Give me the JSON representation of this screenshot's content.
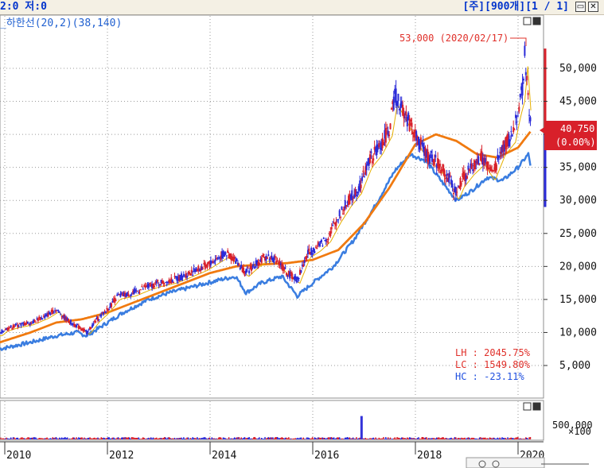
{
  "header": {
    "left_text": "2:0 저:0",
    "right_text": "[주][900개][1 / 1]"
  },
  "legend_text": "_하한선(20,2)(38,140)",
  "annotations": {
    "high_label": "53,000 (2020/02/17)",
    "price_label": "40,750",
    "change_label": "(0.00%)",
    "stats": [
      {
        "label": "LH : 2045.75%",
        "color": "#e0302a"
      },
      {
        "label": "LC : 1549.80%",
        "color": "#e0302a"
      },
      {
        "label": "HC :  -23.11%",
        "color": "#2050e0"
      }
    ],
    "volume_tick": "500,000",
    "volume_unit": "×100"
  },
  "colors": {
    "ma_orange": "#f07a10",
    "lower_band": "#3a7de0",
    "candle_red": "#d8202a",
    "candle_blue": "#2a2ad8",
    "grid": "#9a9a9a"
  },
  "chart_data": {
    "type": "line",
    "x_ticks": [
      "2010",
      "2012",
      "2014",
      "2016",
      "2018",
      "2020"
    ],
    "y_ticks": [
      {
        "v": 5000,
        "label": "5,000"
      },
      {
        "v": 10000,
        "label": "10,000"
      },
      {
        "v": 15000,
        "label": "15,000"
      },
      {
        "v": 20000,
        "label": "20,000"
      },
      {
        "v": 25000,
        "label": "25,000"
      },
      {
        "v": 30000,
        "label": "30,000"
      },
      {
        "v": 35000,
        "label": "35,000"
      },
      {
        "v": 40000,
        "label": "40,000"
      },
      {
        "v": 45000,
        "label": "45,000"
      },
      {
        "v": 50000,
        "label": "50,000"
      }
    ],
    "ylim": [
      0,
      57000
    ],
    "xlim": [
      2009.9,
      2020.3
    ],
    "grid": true,
    "series": [
      {
        "role": "price",
        "points": [
          [
            2009.9,
            9800
          ],
          [
            2010.0,
            10500
          ],
          [
            2010.2,
            11000
          ],
          [
            2010.5,
            11500
          ],
          [
            2010.8,
            12500
          ],
          [
            2011.0,
            13500
          ],
          [
            2011.2,
            12000
          ],
          [
            2011.4,
            11000
          ],
          [
            2011.6,
            10000
          ],
          [
            2011.8,
            12000
          ],
          [
            2012.0,
            13500
          ],
          [
            2012.2,
            15500
          ],
          [
            2012.5,
            16000
          ],
          [
            2012.8,
            17000
          ],
          [
            2013.0,
            17500
          ],
          [
            2013.3,
            18000
          ],
          [
            2013.6,
            19000
          ],
          [
            2013.9,
            20000
          ],
          [
            2014.1,
            21000
          ],
          [
            2014.3,
            22000
          ],
          [
            2014.5,
            21000
          ],
          [
            2014.7,
            19000
          ],
          [
            2014.9,
            20500
          ],
          [
            2015.1,
            21500
          ],
          [
            2015.3,
            21000
          ],
          [
            2015.5,
            19000
          ],
          [
            2015.7,
            18000
          ],
          [
            2015.9,
            22000
          ],
          [
            2016.1,
            23000
          ],
          [
            2016.3,
            24500
          ],
          [
            2016.5,
            27500
          ],
          [
            2016.7,
            30000
          ],
          [
            2016.9,
            32000
          ],
          [
            2017.1,
            36000
          ],
          [
            2017.3,
            38000
          ],
          [
            2017.5,
            41000
          ],
          [
            2017.6,
            46000
          ],
          [
            2017.8,
            43000
          ],
          [
            2018.0,
            40000
          ],
          [
            2018.2,
            37000
          ],
          [
            2018.4,
            36000
          ],
          [
            2018.6,
            34000
          ],
          [
            2018.8,
            31000
          ],
          [
            2018.9,
            33000
          ],
          [
            2019.1,
            35000
          ],
          [
            2019.3,
            36500
          ],
          [
            2019.5,
            34000
          ],
          [
            2019.7,
            38000
          ],
          [
            2019.9,
            40000
          ],
          [
            2020.0,
            44000
          ],
          [
            2020.1,
            47000
          ],
          [
            2020.13,
            53000
          ],
          [
            2020.2,
            45000
          ],
          [
            2020.25,
            40750
          ]
        ]
      },
      {
        "role": "moving_average",
        "points": [
          [
            2009.9,
            8500
          ],
          [
            2010.5,
            10000
          ],
          [
            2011.0,
            11500
          ],
          [
            2011.5,
            12000
          ],
          [
            2012.0,
            13000
          ],
          [
            2012.5,
            14500
          ],
          [
            2013.0,
            16000
          ],
          [
            2013.5,
            17500
          ],
          [
            2014.0,
            19000
          ],
          [
            2014.5,
            20000
          ],
          [
            2015.0,
            20300
          ],
          [
            2015.5,
            20500
          ],
          [
            2016.0,
            21000
          ],
          [
            2016.5,
            22500
          ],
          [
            2017.0,
            26500
          ],
          [
            2017.5,
            32000
          ],
          [
            2018.0,
            38500
          ],
          [
            2018.4,
            40000
          ],
          [
            2018.8,
            39000
          ],
          [
            2019.2,
            37000
          ],
          [
            2019.6,
            36500
          ],
          [
            2020.0,
            38000
          ],
          [
            2020.25,
            40500
          ]
        ]
      },
      {
        "role": "lower_band",
        "points": [
          [
            2009.9,
            7500
          ],
          [
            2010.5,
            8500
          ],
          [
            2011.0,
            9500
          ],
          [
            2011.4,
            10000
          ],
          [
            2011.6,
            9500
          ],
          [
            2011.9,
            11000
          ],
          [
            2012.3,
            13000
          ],
          [
            2012.8,
            15000
          ],
          [
            2013.2,
            16000
          ],
          [
            2013.7,
            17000
          ],
          [
            2014.2,
            18000
          ],
          [
            2014.5,
            18500
          ],
          [
            2014.7,
            16000
          ],
          [
            2015.0,
            17500
          ],
          [
            2015.4,
            18500
          ],
          [
            2015.7,
            15500
          ],
          [
            2016.0,
            17500
          ],
          [
            2016.4,
            20000
          ],
          [
            2016.8,
            24000
          ],
          [
            2017.2,
            29000
          ],
          [
            2017.6,
            34500
          ],
          [
            2017.9,
            37000
          ],
          [
            2018.2,
            36000
          ],
          [
            2018.5,
            33000
          ],
          [
            2018.8,
            30000
          ],
          [
            2019.1,
            31500
          ],
          [
            2019.4,
            33500
          ],
          [
            2019.7,
            33000
          ],
          [
            2020.0,
            35000
          ],
          [
            2020.2,
            37000
          ],
          [
            2020.25,
            35000
          ]
        ]
      }
    ],
    "volume": {
      "ytick": 500000,
      "ylim": [
        0,
        850000
      ],
      "spike": {
        "x": 2016.95,
        "v": 700000
      },
      "base": 45000
    }
  }
}
